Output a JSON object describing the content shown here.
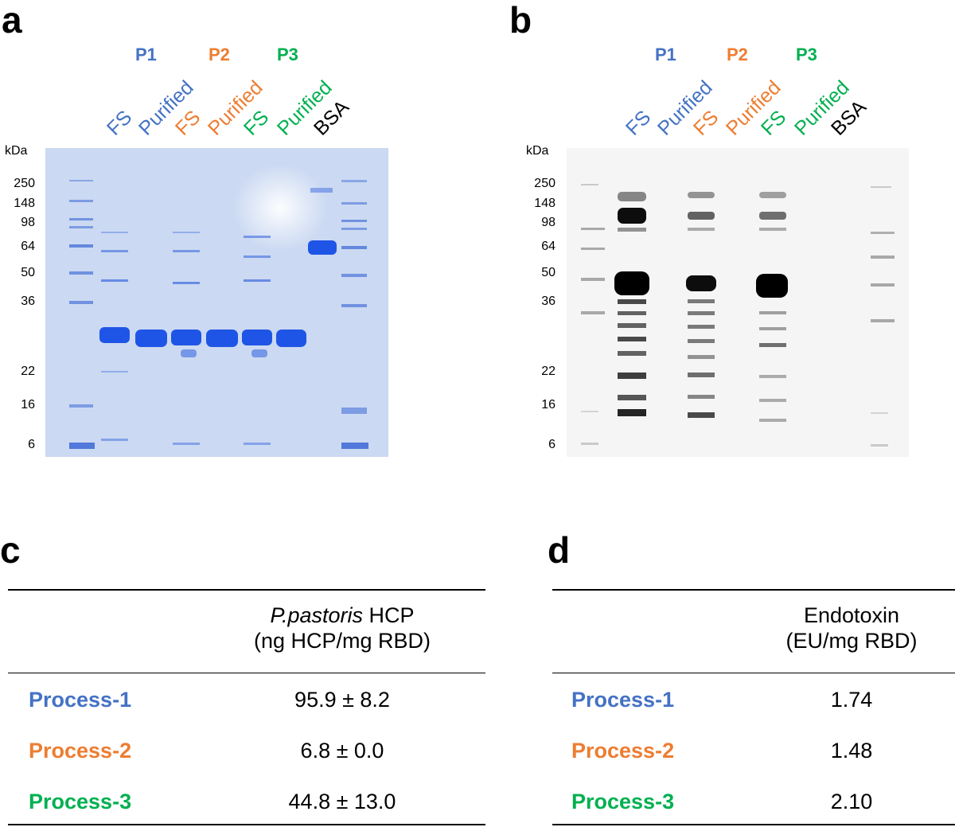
{
  "panels": {
    "a": "a",
    "b": "b",
    "c": "c",
    "d": "d"
  },
  "colors": {
    "p1": "#4472c4",
    "p2": "#ed7d31",
    "p3": "#00b050",
    "bsa": "#000000"
  },
  "gel": {
    "process_labels": [
      "P1",
      "P2",
      "P3"
    ],
    "lanes": {
      "p1_fs": "FS",
      "p1_purified": "Purified",
      "p2_fs": "FS",
      "p2_purified": "Purified",
      "p3_fs": "FS",
      "p3_purified": "Purified",
      "bsa": "BSA"
    },
    "unit": "kDa",
    "markers": [
      "250",
      "148",
      "98",
      "64",
      "50",
      "36",
      "22",
      "16",
      "6"
    ]
  },
  "table_c": {
    "header_italic": "P.pastoris",
    "header_rest": " HCP",
    "header_line2": "(ng HCP/mg RBD)",
    "rows": [
      {
        "label": "Process-1",
        "value": "95.9 ± 8.2"
      },
      {
        "label": "Process-2",
        "value": "6.8 ± 0.0"
      },
      {
        "label": "Process-3",
        "value": "44.8 ± 13.0"
      }
    ]
  },
  "table_d": {
    "header_line1": "Endotoxin",
    "header_line2": "(EU/mg RBD)",
    "rows": [
      {
        "label": "Process-1",
        "value": "1.74"
      },
      {
        "label": "Process-2",
        "value": "1.48"
      },
      {
        "label": "Process-3",
        "value": "2.10"
      }
    ]
  }
}
